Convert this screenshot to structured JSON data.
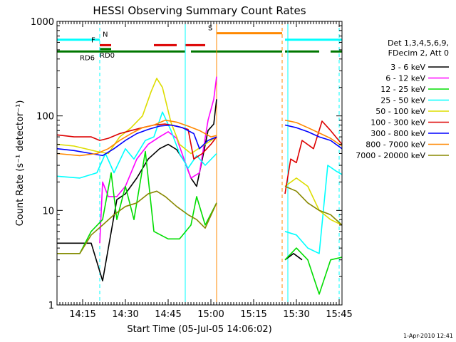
{
  "chart_data": {
    "type": "line",
    "title": "HESSI Observing Summary Count Rates",
    "xlabel": "Start Time (05-Jul-05 14:06:02)",
    "ylabel": "Count Rate (s⁻¹ detector⁻¹)",
    "y_scale": "log",
    "ylim": [
      1,
      1000
    ],
    "y_ticks": [
      1,
      10,
      100,
      1000
    ],
    "y_tick_labels": [
      "1",
      "10",
      "100",
      "1000"
    ],
    "x_range_minutes": [
      0,
      100
    ],
    "x_ticks": [
      {
        "t": 9,
        "label": "14:15"
      },
      {
        "t": 24,
        "label": "14:30"
      },
      {
        "t": 39,
        "label": "14:45"
      },
      {
        "t": 54,
        "label": "15:00"
      },
      {
        "t": 69,
        "label": "15:15"
      },
      {
        "t": 84,
        "label": "15:30"
      },
      {
        "t": 99,
        "label": "15:45"
      }
    ],
    "legend_header": [
      "Det 1,3,4,5,6,9,",
      "FDecim 2, Att 0"
    ],
    "legend_placement": "right",
    "series": [
      {
        "name": "3 - 6 keV",
        "color": "#000000",
        "points": [
          [
            0,
            4.5
          ],
          [
            12,
            4.5
          ],
          [
            16,
            1.8
          ],
          [
            21,
            13
          ],
          [
            24,
            15
          ],
          [
            28,
            22
          ],
          [
            32,
            35
          ],
          [
            36,
            45
          ],
          [
            39,
            50
          ],
          [
            42,
            44
          ],
          [
            45,
            32
          ],
          [
            47,
            22
          ],
          [
            49,
            18
          ],
          [
            51,
            35
          ],
          [
            53,
            70
          ],
          [
            55,
            82
          ],
          [
            56,
            150
          ]
        ]
      },
      {
        "name": "6 - 12 keV",
        "color": "#ff00ff",
        "points": [
          [
            15,
            4.5
          ],
          [
            16,
            20
          ],
          [
            18,
            14
          ],
          [
            21,
            14
          ],
          [
            24,
            18
          ],
          [
            28,
            35
          ],
          [
            32,
            50
          ],
          [
            36,
            60
          ],
          [
            39,
            68
          ],
          [
            42,
            58
          ],
          [
            45,
            32
          ],
          [
            47,
            22
          ],
          [
            50,
            25
          ],
          [
            53,
            90
          ],
          [
            55,
            150
          ],
          [
            56,
            260
          ]
        ]
      },
      {
        "name": "12 - 25 keV",
        "color": "#00dd00",
        "points": [
          [
            0,
            3.5
          ],
          [
            8,
            3.5
          ],
          [
            12,
            6
          ],
          [
            16,
            8
          ],
          [
            19,
            25
          ],
          [
            21,
            8
          ],
          [
            24,
            18
          ],
          [
            27,
            8
          ],
          [
            31,
            42
          ],
          [
            34,
            6
          ],
          [
            39,
            5
          ],
          [
            43,
            5
          ],
          [
            47,
            7
          ],
          [
            49,
            14
          ],
          [
            52,
            7
          ],
          [
            56,
            12
          ]
        ]
      },
      {
        "name": "25 - 50 keV",
        "color": "#00ffff",
        "points": [
          [
            0,
            23
          ],
          [
            8,
            22
          ],
          [
            14,
            25
          ],
          [
            17,
            40
          ],
          [
            20,
            25
          ],
          [
            24,
            45
          ],
          [
            27,
            35
          ],
          [
            31,
            55
          ],
          [
            34,
            60
          ],
          [
            37,
            110
          ],
          [
            40,
            70
          ],
          [
            43,
            40
          ],
          [
            46,
            28
          ],
          [
            49,
            38
          ],
          [
            52,
            30
          ],
          [
            56,
            40
          ]
        ]
      },
      {
        "name": "50 - 100 keV",
        "color": "#dddd00",
        "points": [
          [
            0,
            50
          ],
          [
            6,
            48
          ],
          [
            14,
            42
          ],
          [
            18,
            40
          ],
          [
            22,
            60
          ],
          [
            26,
            75
          ],
          [
            30,
            100
          ],
          [
            33,
            180
          ],
          [
            35,
            250
          ],
          [
            37,
            200
          ],
          [
            40,
            85
          ],
          [
            43,
            50
          ],
          [
            47,
            40
          ],
          [
            52,
            50
          ],
          [
            56,
            60
          ]
        ]
      },
      {
        "name": "100 - 300 keV",
        "color": "#dd0000",
        "points": [
          [
            0,
            63
          ],
          [
            6,
            60
          ],
          [
            12,
            60
          ],
          [
            15,
            55
          ],
          [
            18,
            58
          ],
          [
            22,
            65
          ],
          [
            26,
            70
          ],
          [
            30,
            75
          ],
          [
            34,
            80
          ],
          [
            38,
            82
          ],
          [
            42,
            78
          ],
          [
            46,
            72
          ],
          [
            48,
            35
          ],
          [
            51,
            40
          ],
          [
            54,
            50
          ],
          [
            56,
            60
          ]
        ]
      },
      {
        "name": "300 - 800 keV",
        "color": "#0000ff",
        "points": [
          [
            0,
            45
          ],
          [
            6,
            43
          ],
          [
            12,
            40
          ],
          [
            16,
            38
          ],
          [
            20,
            45
          ],
          [
            24,
            55
          ],
          [
            28,
            65
          ],
          [
            32,
            72
          ],
          [
            36,
            78
          ],
          [
            40,
            80
          ],
          [
            44,
            75
          ],
          [
            48,
            65
          ],
          [
            50,
            45
          ],
          [
            53,
            55
          ],
          [
            56,
            60
          ]
        ]
      },
      {
        "name": "800 - 7000 keV",
        "color": "#ff8800",
        "points": [
          [
            0,
            40
          ],
          [
            8,
            38
          ],
          [
            14,
            40
          ],
          [
            18,
            45
          ],
          [
            22,
            55
          ],
          [
            26,
            65
          ],
          [
            30,
            75
          ],
          [
            34,
            80
          ],
          [
            38,
            90
          ],
          [
            42,
            86
          ],
          [
            46,
            78
          ],
          [
            50,
            70
          ],
          [
            54,
            60
          ],
          [
            56,
            62
          ]
        ]
      },
      {
        "name": "7000 - 20000 keV",
        "color": "#888800",
        "points": [
          [
            0,
            3.5
          ],
          [
            8,
            3.5
          ],
          [
            12,
            5.5
          ],
          [
            16,
            7
          ],
          [
            20,
            9
          ],
          [
            24,
            11
          ],
          [
            28,
            12
          ],
          [
            32,
            15
          ],
          [
            35,
            16
          ],
          [
            38,
            14
          ],
          [
            42,
            11
          ],
          [
            46,
            9
          ],
          [
            49,
            8
          ],
          [
            52,
            6.5
          ],
          [
            56,
            12
          ]
        ]
      }
    ],
    "series_after_gap": [
      {
        "name": "3 - 6 keV",
        "color": "#000000",
        "points": [
          [
            80,
            3
          ],
          [
            83,
            3.5
          ],
          [
            86,
            3
          ]
        ]
      },
      {
        "name": "12 - 25 keV",
        "color": "#00dd00",
        "points": [
          [
            80,
            3
          ],
          [
            84,
            4
          ],
          [
            88,
            3
          ],
          [
            92,
            1.3
          ],
          [
            96,
            3
          ],
          [
            100,
            3.2
          ]
        ]
      },
      {
        "name": "25 - 50 keV",
        "color": "#00ffff",
        "points": [
          [
            80,
            6
          ],
          [
            84,
            5.5
          ],
          [
            88,
            4
          ],
          [
            92,
            3.5
          ],
          [
            95,
            30
          ],
          [
            98,
            26
          ],
          [
            100,
            24
          ]
        ]
      },
      {
        "name": "50 - 100 keV",
        "color": "#dddd00",
        "points": [
          [
            80,
            18
          ],
          [
            84,
            22
          ],
          [
            88,
            18
          ],
          [
            92,
            10
          ],
          [
            96,
            8
          ],
          [
            100,
            7
          ]
        ]
      },
      {
        "name": "100 - 300 keV",
        "color": "#dd0000",
        "points": [
          [
            80,
            15
          ],
          [
            82,
            35
          ],
          [
            84,
            32
          ],
          [
            86,
            55
          ],
          [
            90,
            45
          ],
          [
            93,
            88
          ],
          [
            96,
            70
          ],
          [
            100,
            50
          ]
        ]
      },
      {
        "name": "300 - 800 keV",
        "color": "#0000ff",
        "points": [
          [
            80,
            80
          ],
          [
            84,
            75
          ],
          [
            88,
            68
          ],
          [
            92,
            60
          ],
          [
            96,
            55
          ],
          [
            100,
            45
          ]
        ]
      },
      {
        "name": "800 - 7000 keV",
        "color": "#ff8800",
        "points": [
          [
            80,
            90
          ],
          [
            84,
            85
          ],
          [
            88,
            75
          ],
          [
            92,
            66
          ],
          [
            96,
            58
          ],
          [
            100,
            48
          ]
        ]
      },
      {
        "name": "7000 - 20000 keV",
        "color": "#888800",
        "points": [
          [
            80,
            18
          ],
          [
            84,
            16
          ],
          [
            88,
            12
          ],
          [
            92,
            10
          ],
          [
            96,
            9
          ],
          [
            100,
            7
          ]
        ]
      }
    ],
    "flag_bars": [
      {
        "label": "N",
        "color": "#00ffff",
        "y": 640,
        "segments": [
          [
            0,
            15
          ],
          [
            80,
            100
          ]
        ],
        "label_at": 16
      },
      {
        "label": "S",
        "color": "#ff8800",
        "y": 750,
        "segments": [
          [
            56,
            79
          ]
        ],
        "label_at": 53
      },
      {
        "label": "F",
        "color": "#dd0000",
        "y": 560,
        "segments": [
          [
            15,
            19
          ],
          [
            34,
            42
          ],
          [
            45,
            52
          ]
        ],
        "label_at": 12
      },
      {
        "label": "RD0",
        "color": "#007700",
        "y": 510,
        "segments": [
          [
            15,
            19
          ]
        ],
        "label_at": 15
      },
      {
        "label": "RD6",
        "color": "#007700",
        "y": 480,
        "segments": [
          [
            0,
            45
          ],
          [
            47,
            79
          ],
          [
            80,
            92
          ],
          [
            96,
            100
          ]
        ],
        "label_at": 8
      }
    ],
    "vertical_lines": [
      {
        "t": 0,
        "color": "#00ffff",
        "style": "solid"
      },
      {
        "t": 15,
        "color": "#00ffff",
        "style": "dashed"
      },
      {
        "t": 45,
        "color": "#00ffff",
        "style": "solid"
      },
      {
        "t": 56,
        "color": "#ff8800",
        "style": "solid"
      },
      {
        "t": 79,
        "color": "#ff8800",
        "style": "dashed"
      },
      {
        "t": 81,
        "color": "#00ffff",
        "style": "solid"
      },
      {
        "t": 99,
        "color": "#00ffff",
        "style": "dashed"
      }
    ],
    "timestamp": "1-Apr-2010 12:41"
  }
}
